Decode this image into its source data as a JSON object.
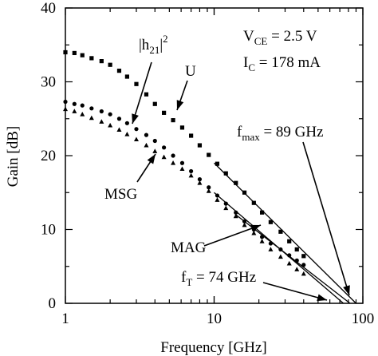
{
  "chart_data": {
    "type": "scatter",
    "title": "",
    "xlabel": "Frequency [GHz]",
    "ylabel": "Gain [dB]",
    "xscale": "log",
    "xlim": [
      1,
      100
    ],
    "ylim": [
      0,
      40
    ],
    "xticks": [
      1,
      10,
      100
    ],
    "xtick_labels": [
      "1",
      "10",
      "100"
    ],
    "yticks": [
      0,
      10,
      20,
      30,
      40
    ],
    "ytick_labels": [
      "0",
      "10",
      "20",
      "30",
      "40"
    ],
    "grid": false,
    "colors": {
      "ink": "#000000",
      "background": "#ffffff"
    },
    "conditions": {
      "vce": {
        "main": "V",
        "sub": "CE",
        "rest": " = 2.5 V"
      },
      "ic": {
        "main": "I",
        "sub": "C",
        "rest": " = 178 mA"
      }
    },
    "series": [
      {
        "name": "U",
        "marker": "square",
        "x": [
          1.0,
          1.15,
          1.3,
          1.5,
          1.75,
          2.0,
          2.3,
          2.6,
          3.0,
          3.5,
          4.0,
          4.6,
          5.3,
          6.1,
          7.0,
          8.0,
          9.2,
          10.5,
          12.0,
          14.0,
          16.0,
          18.5,
          21.0,
          24.0,
          28.0,
          32.0,
          36.0,
          40.0
        ],
        "y": [
          34.0,
          33.9,
          33.6,
          33.2,
          32.8,
          32.3,
          31.5,
          30.7,
          29.7,
          28.3,
          27.0,
          25.8,
          24.8,
          23.8,
          22.7,
          21.4,
          20.1,
          18.9,
          17.6,
          16.3,
          15.0,
          13.6,
          12.3,
          11.0,
          9.7,
          8.4,
          7.3,
          6.4
        ]
      },
      {
        "name": "|h21|²",
        "marker": "circle",
        "x": [
          1.0,
          1.15,
          1.3,
          1.5,
          1.75,
          2.0,
          2.3,
          2.6,
          3.0,
          3.5,
          4.0,
          4.6,
          5.3,
          6.1,
          7.0,
          8.0,
          9.2,
          10.5,
          12.0,
          14.0,
          16.0,
          18.5,
          21.0,
          24.0,
          28.0,
          32.0,
          36.0,
          40.0
        ],
        "y": [
          27.3,
          27.0,
          26.8,
          26.4,
          26.0,
          25.6,
          25.0,
          24.4,
          23.6,
          22.8,
          22.0,
          21.1,
          20.0,
          19.0,
          17.9,
          16.8,
          15.7,
          14.6,
          13.5,
          12.3,
          11.1,
          10.0,
          9.0,
          8.1,
          7.3,
          6.5,
          5.8,
          5.2
        ]
      },
      {
        "name": "MSG / MAG",
        "marker": "triangle",
        "x": [
          1.0,
          1.15,
          1.3,
          1.5,
          1.75,
          2.0,
          2.3,
          2.6,
          3.0,
          3.5,
          4.0,
          4.6,
          5.3,
          6.1,
          7.0,
          8.0,
          9.2,
          10.5,
          12.0,
          14.0,
          16.0,
          18.5,
          21.0,
          24.0,
          28.0,
          32.0,
          36.0,
          40.0
        ],
        "y": [
          26.3,
          26.0,
          25.6,
          25.1,
          24.6,
          24.1,
          23.5,
          22.9,
          22.2,
          21.4,
          20.6,
          19.8,
          19.0,
          18.2,
          17.3,
          16.3,
          15.2,
          14.0,
          12.9,
          11.8,
          10.6,
          9.5,
          8.4,
          7.3,
          6.3,
          5.4,
          4.6,
          4.0
        ]
      }
    ],
    "fits": [
      {
        "x": [
          10,
          90
        ],
        "y": [
          19.0,
          0.0
        ]
      },
      {
        "x": [
          10,
          74
        ],
        "y": [
          15.0,
          0.0
        ]
      },
      {
        "x": [
          14,
          82
        ],
        "y": [
          12.0,
          0.0
        ]
      }
    ],
    "annotations": [
      {
        "main": "|h",
        "sub": "21",
        "rest": "|",
        "sup": "2"
      },
      {
        "main": "U",
        "sub": "",
        "rest": "",
        "sup": ""
      },
      {
        "main": "MSG",
        "sub": "",
        "rest": "",
        "sup": ""
      },
      {
        "main": "MAG",
        "sub": "",
        "rest": "",
        "sup": ""
      },
      {
        "main": "f",
        "sub": "max",
        "rest": " = 89 GHz",
        "sup": ""
      },
      {
        "main": "f",
        "sub": "T",
        "rest": " = 74 GHz",
        "sup": ""
      }
    ]
  }
}
